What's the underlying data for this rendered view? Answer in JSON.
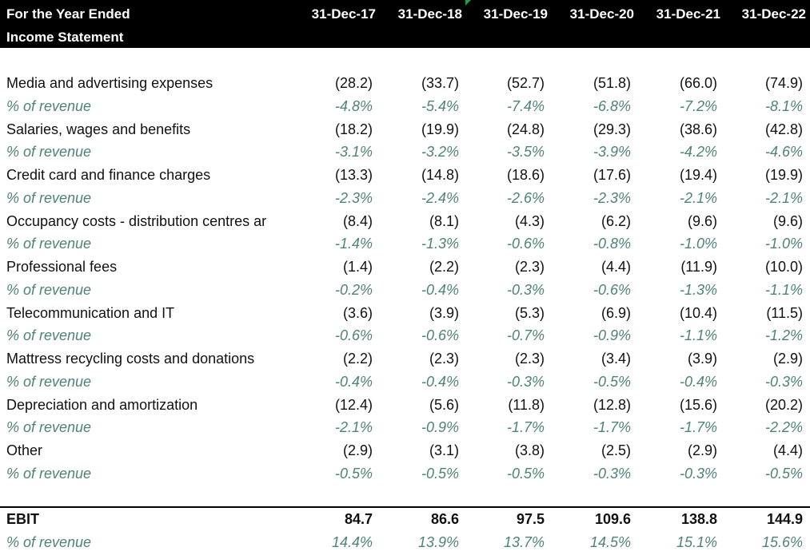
{
  "header": {
    "line1": "For the Year Ended",
    "line2": "Income Statement",
    "years": [
      "31-Dec-17",
      "31-Dec-18",
      "31-Dec-19",
      "31-Dec-20",
      "31-Dec-21",
      "31-Dec-22"
    ]
  },
  "rows": [
    {
      "label": "Media and advertising expenses",
      "values": [
        "(28.2)",
        "(33.7)",
        "(52.7)",
        "(51.8)",
        "(66.0)",
        "(74.9)"
      ]
    },
    {
      "label": "% of revenue",
      "values": [
        "-4.8%",
        "-5.4%",
        "-7.4%",
        "-6.8%",
        "-7.2%",
        "-8.1%"
      ]
    },
    {
      "label": "Salaries, wages and benefits",
      "values": [
        "(18.2)",
        "(19.9)",
        "(24.8)",
        "(29.3)",
        "(38.6)",
        "(42.8)"
      ]
    },
    {
      "label": "% of revenue",
      "values": [
        "-3.1%",
        "-3.2%",
        "-3.5%",
        "-3.9%",
        "-4.2%",
        "-4.6%"
      ]
    },
    {
      "label": "Credit card and finance charges",
      "values": [
        "(13.3)",
        "(14.8)",
        "(18.6)",
        "(17.6)",
        "(19.4)",
        "(19.9)"
      ]
    },
    {
      "label": "% of revenue",
      "values": [
        "-2.3%",
        "-2.4%",
        "-2.6%",
        "-2.3%",
        "-2.1%",
        "-2.1%"
      ]
    },
    {
      "label": "Occupancy costs - distribution centres ar",
      "values": [
        "(8.4)",
        "(8.1)",
        "(4.3)",
        "(6.2)",
        "(9.6)",
        "(9.6)"
      ]
    },
    {
      "label": "% of revenue",
      "values": [
        "-1.4%",
        "-1.3%",
        "-0.6%",
        "-0.8%",
        "-1.0%",
        "-1.0%"
      ]
    },
    {
      "label": "Professional fees",
      "values": [
        "(1.4)",
        "(2.2)",
        "(2.3)",
        "(4.4)",
        "(11.9)",
        "(10.0)"
      ]
    },
    {
      "label": "% of revenue",
      "values": [
        "-0.2%",
        "-0.4%",
        "-0.3%",
        "-0.6%",
        "-1.3%",
        "-1.1%"
      ]
    },
    {
      "label": "Telecommunication and IT",
      "values": [
        "(3.6)",
        "(3.9)",
        "(5.3)",
        "(6.9)",
        "(10.4)",
        "(11.5)"
      ]
    },
    {
      "label": "% of revenue",
      "values": [
        "-0.6%",
        "-0.6%",
        "-0.7%",
        "-0.9%",
        "-1.1%",
        "-1.2%"
      ]
    },
    {
      "label": "Mattress recycling costs and donations",
      "values": [
        "(2.2)",
        "(2.3)",
        "(2.3)",
        "(3.4)",
        "(3.9)",
        "(2.9)"
      ]
    },
    {
      "label": "% of revenue",
      "values": [
        "-0.4%",
        "-0.4%",
        "-0.3%",
        "-0.5%",
        "-0.4%",
        "-0.3%"
      ]
    },
    {
      "label": "Depreciation and amortization",
      "values": [
        "(12.4)",
        "(5.6)",
        "(11.8)",
        "(12.8)",
        "(15.6)",
        "(20.2)"
      ]
    },
    {
      "label": "% of revenue",
      "values": [
        "-2.1%",
        "-0.9%",
        "-1.7%",
        "-1.7%",
        "-1.7%",
        "-2.2%"
      ]
    },
    {
      "label": "Other",
      "values": [
        "(2.9)",
        "(3.1)",
        "(3.8)",
        "(2.5)",
        "(2.9)",
        "(4.4)"
      ]
    },
    {
      "label": "% of revenue",
      "values": [
        "-0.5%",
        "-0.5%",
        "-0.5%",
        "-0.3%",
        "-0.3%",
        "-0.5%"
      ]
    }
  ],
  "ebit": {
    "label": "EBIT",
    "values": [
      "84.7",
      "86.6",
      "97.5",
      "109.6",
      "138.8",
      "144.9"
    ]
  },
  "ebit_pct": {
    "label": "% of revenue",
    "values": [
      "14.4%",
      "13.9%",
      "13.7%",
      "14.5%",
      "15.1%",
      "15.6%"
    ]
  },
  "colors": {
    "header_bg": "#000000",
    "header_text": "#ffffff",
    "pct_text": "#4e8279",
    "marker": "#1fa046"
  }
}
